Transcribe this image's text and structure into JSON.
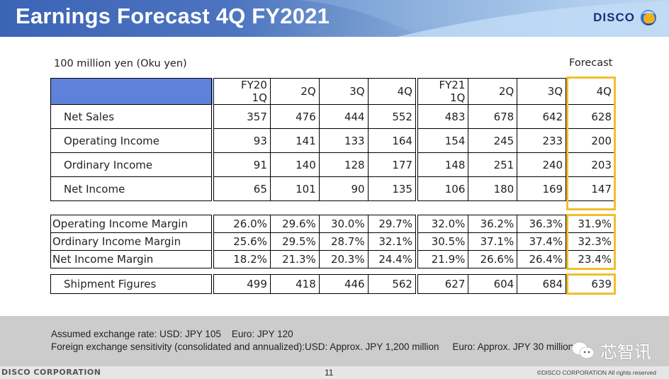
{
  "header": {
    "title": "Earnings Forecast 4Q FY2021",
    "logo_text": "DISCO"
  },
  "unit_label": "100 million yen (Oku yen)",
  "forecast_label": "Forecast",
  "columns": [
    {
      "line1": "FY20",
      "line2": "1Q"
    },
    {
      "line1": "2Q",
      "line2": ""
    },
    {
      "line1": "3Q",
      "line2": ""
    },
    {
      "line1": "4Q",
      "line2": ""
    },
    {
      "line1": "FY21",
      "line2": "1Q"
    },
    {
      "line1": "2Q",
      "line2": ""
    },
    {
      "line1": "3Q",
      "line2": ""
    },
    {
      "line1": "4Q",
      "line2": ""
    }
  ],
  "financials": [
    {
      "label": "Net Sales",
      "values": [
        "357",
        "476",
        "444",
        "552",
        "483",
        "678",
        "642",
        "628"
      ]
    },
    {
      "label": "Operating Income",
      "values": [
        "93",
        "141",
        "133",
        "164",
        "154",
        "245",
        "233",
        "200"
      ]
    },
    {
      "label": "Ordinary  Income",
      "values": [
        "91",
        "140",
        "128",
        "177",
        "148",
        "251",
        "240",
        "203"
      ]
    },
    {
      "label": "Net Income",
      "values": [
        "65",
        "101",
        "90",
        "135",
        "106",
        "180",
        "169",
        "147"
      ]
    }
  ],
  "margins": [
    {
      "label": "Operating Income Margin",
      "values": [
        "26.0%",
        "29.6%",
        "30.0%",
        "29.7%",
        "32.0%",
        "36.2%",
        "36.3%",
        "31.9%"
      ]
    },
    {
      "label": "Ordinary Income Margin",
      "values": [
        "25.6%",
        "29.5%",
        "28.7%",
        "32.1%",
        "30.5%",
        "37.1%",
        "37.4%",
        "32.3%"
      ]
    },
    {
      "label": "Net Income Margin",
      "values": [
        "18.2%",
        "21.3%",
        "20.3%",
        "24.4%",
        "21.9%",
        "26.6%",
        "26.4%",
        "23.4%"
      ]
    }
  ],
  "shipments": {
    "label": "Shipment Figures",
    "values": [
      "499",
      "418",
      "446",
      "562",
      "627",
      "604",
      "684",
      "639"
    ]
  },
  "fx_notes": {
    "line1": "Assumed exchange rate: USD: JPY 105    Euro: JPY 120",
    "line2": "Foreign exchange sensitivity (consolidated and annualized):USD: Approx. JPY 1,200 million     Euro: Approx. JPY 30 million"
  },
  "footer": {
    "company": "DISCO CORPORATION",
    "page_number": "11",
    "copyright": "©DISCO CORPORATION   All rights reserved"
  },
  "watermark": {
    "text": "芯智讯"
  },
  "colors": {
    "header_blue": "#3c64b6",
    "table_header": "#5e82dc",
    "forecast_highlight": "#f1be2e",
    "footer_band": "#cccccc"
  }
}
